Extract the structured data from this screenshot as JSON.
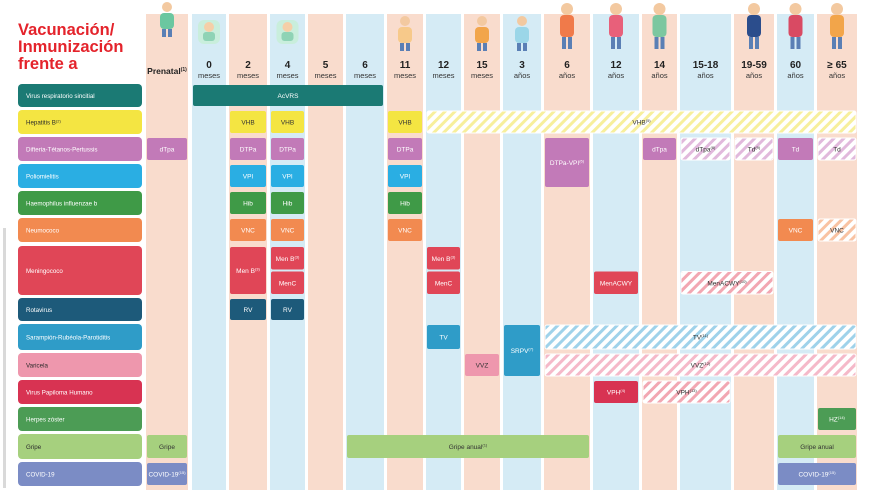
{
  "title_lines": [
    "Vacunación/",
    "Inmunización",
    "frente a"
  ],
  "columns": [
    {
      "label": "Prenatal",
      "sup": "(1)",
      "unit": ""
    },
    {
      "label": "0",
      "unit": "meses"
    },
    {
      "label": "2",
      "unit": "meses"
    },
    {
      "label": "4",
      "unit": "meses"
    },
    {
      "label": "5",
      "unit": "meses"
    },
    {
      "label": "6",
      "unit": "meses"
    },
    {
      "label": "11",
      "unit": "meses"
    },
    {
      "label": "12",
      "unit": "meses"
    },
    {
      "label": "15",
      "unit": "meses"
    },
    {
      "label": "3",
      "unit": "años"
    },
    {
      "label": "6",
      "unit": "años"
    },
    {
      "label": "12",
      "unit": "años"
    },
    {
      "label": "14",
      "unit": "años"
    },
    {
      "label": "15-18",
      "unit": "años"
    },
    {
      "label": "19-59",
      "unit": "años"
    },
    {
      "label": "60",
      "unit": "años"
    },
    {
      "label": "≥ 65",
      "unit": "años"
    }
  ],
  "rows": [
    {
      "label": "Virus respiratorio sincitial",
      "color": "#1b7a74"
    },
    {
      "label": "Hepatitis B",
      "sup": "(2)",
      "color": "#f4e542"
    },
    {
      "label": "Difteria-Tétanos-Pertussis",
      "color": "#c27ab8"
    },
    {
      "label": "Poliomielitis",
      "color": "#2aaee3"
    },
    {
      "label": "Haemophilus influenzae b",
      "color": "#3f9a47"
    },
    {
      "label": "Neumococo",
      "color": "#f28a50"
    },
    {
      "label": "Meningococo",
      "color": "#e04657"
    },
    {
      "label": "Rotavirus",
      "color": "#1d5a7a"
    },
    {
      "label": "Sarampión-Rubéola-Parotiditis",
      "color": "#2f9cc8"
    },
    {
      "label": "Varicela",
      "color": "#ee97ad"
    },
    {
      "label": "Virus Papiloma Humano",
      "color": "#d83352"
    },
    {
      "label": "Herpes zóster",
      "color": "#4c9c55"
    },
    {
      "label": "Gripe",
      "color": "#a6d07e"
    },
    {
      "label": "COVID-19",
      "color": "#7b8cc5"
    }
  ],
  "chart_data": {
    "type": "table",
    "title": "Vacunación/ Inmunización frente a",
    "cells": [
      {
        "row": 0,
        "from": 1,
        "to": 5,
        "text": "AcVRS",
        "style": "solid"
      },
      {
        "row": 1,
        "from": 2,
        "to": 2,
        "text": "VHB",
        "style": "solid"
      },
      {
        "row": 1,
        "from": 3,
        "to": 3,
        "text": "VHB",
        "style": "solid"
      },
      {
        "row": 1,
        "from": 6,
        "to": 6,
        "text": "VHB",
        "style": "solid"
      },
      {
        "row": 1,
        "from": 7,
        "to": 16,
        "text": "VHB",
        "sup": "(5)",
        "style": "hatch"
      },
      {
        "row": 2,
        "from": 0,
        "to": 0,
        "text": "dTpa",
        "style": "solid"
      },
      {
        "row": 2,
        "from": 2,
        "to": 2,
        "text": "DTPa",
        "style": "solid"
      },
      {
        "row": 2,
        "from": 3,
        "to": 3,
        "text": "DTPa",
        "style": "solid"
      },
      {
        "row": 2,
        "from": 6,
        "to": 6,
        "text": "DTPa",
        "style": "solid"
      },
      {
        "row": 2,
        "from": 10,
        "to": 10,
        "text": "DTPa-VPI",
        "sup": "(6)",
        "style": "solid",
        "span": 2
      },
      {
        "row": 2,
        "from": 12,
        "to": 12,
        "text": "dTpa",
        "style": "solid"
      },
      {
        "row": 2,
        "from": 13,
        "to": 13,
        "text": "dTpa",
        "sup": "(8)",
        "style": "hatch"
      },
      {
        "row": 2,
        "from": 14,
        "to": 14,
        "text": "Td",
        "sup": "(9)",
        "style": "hatch"
      },
      {
        "row": 2,
        "from": 15,
        "to": 15,
        "text": "Td",
        "style": "solid"
      },
      {
        "row": 2,
        "from": 16,
        "to": 16,
        "text": "Td",
        "style": "hatch"
      },
      {
        "row": 3,
        "from": 2,
        "to": 2,
        "text": "VPI",
        "style": "solid"
      },
      {
        "row": 3,
        "from": 3,
        "to": 3,
        "text": "VPI",
        "style": "solid"
      },
      {
        "row": 3,
        "from": 6,
        "to": 6,
        "text": "VPI",
        "style": "solid"
      },
      {
        "row": 4,
        "from": 2,
        "to": 2,
        "text": "Hib",
        "style": "solid"
      },
      {
        "row": 4,
        "from": 3,
        "to": 3,
        "text": "Hib",
        "style": "solid"
      },
      {
        "row": 4,
        "from": 6,
        "to": 6,
        "text": "Hib",
        "style": "solid"
      },
      {
        "row": 5,
        "from": 2,
        "to": 2,
        "text": "VNC",
        "style": "solid"
      },
      {
        "row": 5,
        "from": 3,
        "to": 3,
        "text": "VNC",
        "style": "solid"
      },
      {
        "row": 5,
        "from": 6,
        "to": 6,
        "text": "VNC",
        "style": "solid"
      },
      {
        "row": 5,
        "from": 15,
        "to": 15,
        "text": "VNC",
        "style": "solid"
      },
      {
        "row": 5,
        "from": 16,
        "to": 16,
        "text": "VNC",
        "style": "hatch"
      },
      {
        "row": 6,
        "from": 2,
        "to": 2,
        "text": "Men B",
        "sup": "(3)",
        "style": "solid",
        "span": 2
      },
      {
        "row": 6,
        "from": 3,
        "to": 3,
        "text": "Men B",
        "sup": "(3)",
        "style": "solid",
        "half": "top"
      },
      {
        "row": 6,
        "from": 3,
        "to": 3,
        "text": "MenC",
        "style": "solid",
        "half": "bottom"
      },
      {
        "row": 6,
        "from": 7,
        "to": 7,
        "text": "Men B",
        "sup": "(3)",
        "style": "solid",
        "half": "top"
      },
      {
        "row": 6,
        "from": 7,
        "to": 7,
        "text": "MenC",
        "style": "solid",
        "half": "bottom"
      },
      {
        "row": 6,
        "from": 11,
        "to": 11,
        "text": "MenACWY",
        "style": "solid",
        "half": "bottom"
      },
      {
        "row": 6,
        "from": 13,
        "to": 14,
        "text": "MenACWY",
        "sup": "(10)",
        "style": "hatch",
        "half": "bottom"
      },
      {
        "row": 7,
        "from": 2,
        "to": 2,
        "text": "RV",
        "style": "solid"
      },
      {
        "row": 7,
        "from": 3,
        "to": 3,
        "text": "RV",
        "style": "solid"
      },
      {
        "row": 8,
        "from": 7,
        "to": 7,
        "text": "TV",
        "style": "solid"
      },
      {
        "row": 8,
        "from": 9,
        "to": 9,
        "text": "SRPV",
        "sup": "(7)",
        "style": "solid",
        "span": 2
      },
      {
        "row": 8,
        "from": 10,
        "to": 16,
        "text": "TV",
        "sup": "(11)",
        "style": "hatch"
      },
      {
        "row": 9,
        "from": 8,
        "to": 8,
        "text": "VVZ",
        "style": "solid"
      },
      {
        "row": 9,
        "from": 10,
        "to": 16,
        "text": "VVZ",
        "sup": "(12)",
        "style": "hatch"
      },
      {
        "row": 10,
        "from": 11,
        "to": 11,
        "text": "VPH",
        "sup": "(4)",
        "style": "solid"
      },
      {
        "row": 10,
        "from": 12,
        "to": 13,
        "text": "VPH",
        "sup": "(13)",
        "style": "hatch"
      },
      {
        "row": 11,
        "from": 16,
        "to": 16,
        "text": "HZ",
        "sup": "(14)",
        "style": "solid"
      },
      {
        "row": 12,
        "from": 0,
        "to": 0,
        "text": "Gripe",
        "style": "solid"
      },
      {
        "row": 12,
        "from": 5,
        "to": 10,
        "text": "Gripe anual",
        "sup": "(1)",
        "style": "solid"
      },
      {
        "row": 12,
        "from": 15,
        "to": 16,
        "text": "Gripe anual",
        "style": "solid"
      },
      {
        "row": 13,
        "from": 0,
        "to": 0,
        "text": "COVID-19",
        "sup": "(15)",
        "style": "solid"
      },
      {
        "row": 13,
        "from": 15,
        "to": 16,
        "text": "COVID-19",
        "sup": "(15)",
        "style": "solid"
      }
    ]
  }
}
